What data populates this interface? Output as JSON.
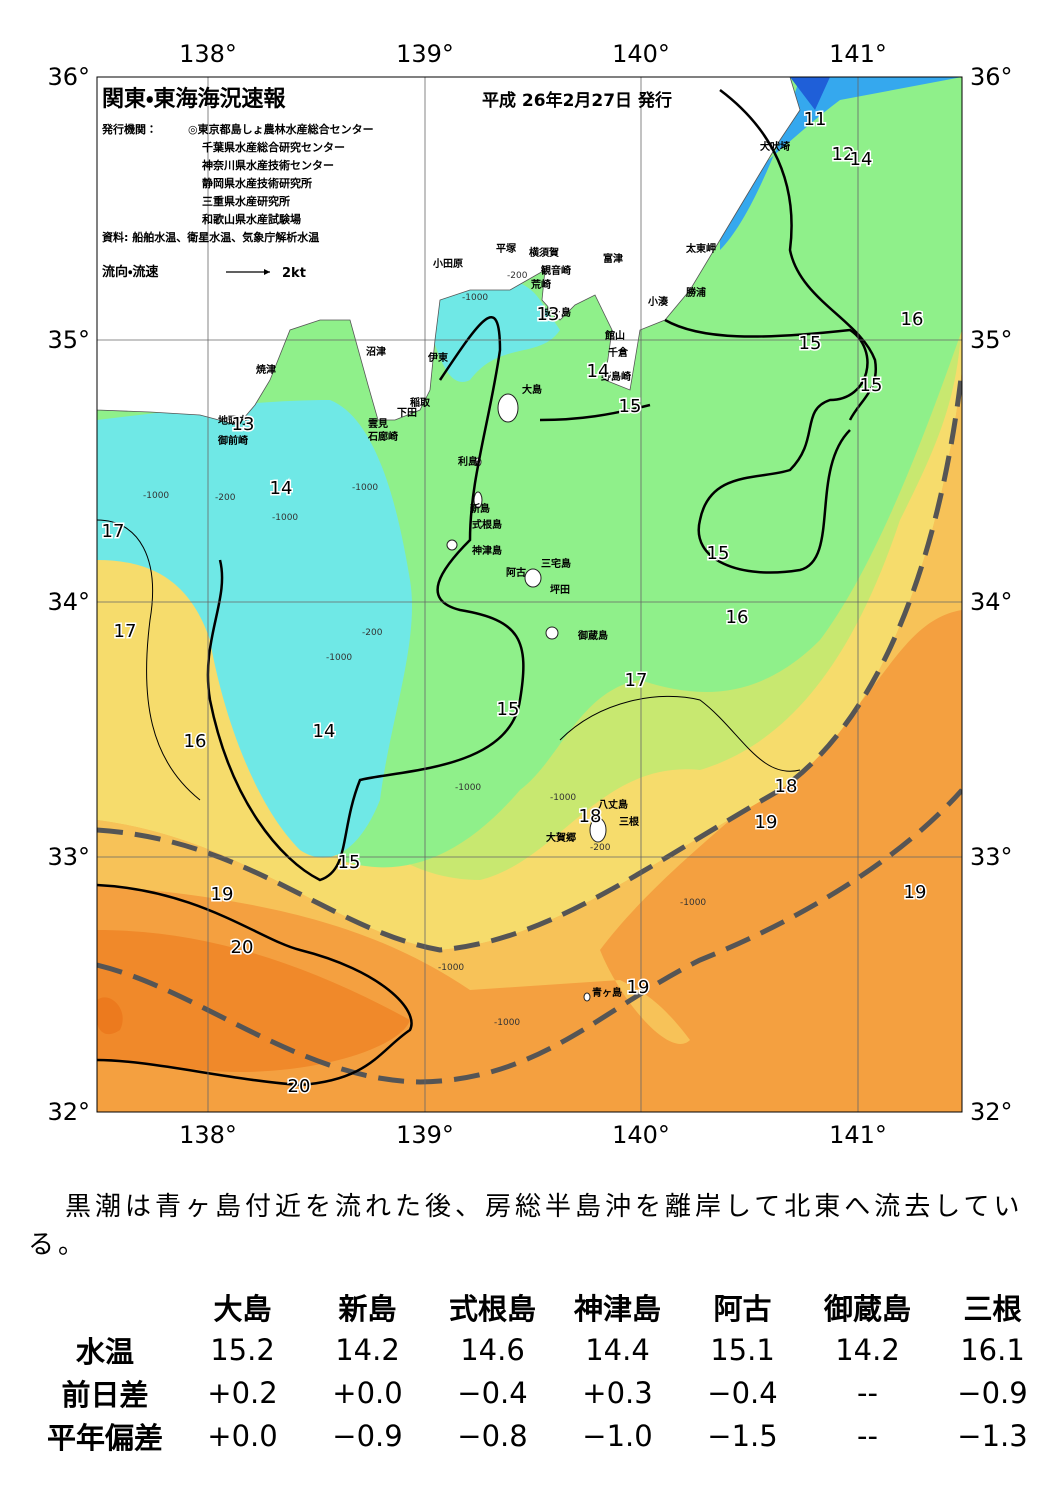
{
  "map": {
    "title": "関東・東海海況速報",
    "issued": "平成 26年2月27日 発行",
    "publisher_label": "発行機関：",
    "publishers": [
      "◎東京都島しょ農林水産総合センター",
      "千葉県水産総合研究センター",
      "神奈川県水産技術センター",
      "静岡県水産技術研究所",
      "三重県水産研究所",
      "和歌山県水産試験場"
    ],
    "source": "資料: 船舶水温、衛星水温、気象庁解析水温",
    "legend_label": "流向・流速",
    "legend_scale": "2kt",
    "lon_labels": [
      "138°",
      "139°",
      "140°",
      "141°"
    ],
    "lat_labels": [
      "36°",
      "35°",
      "34°",
      "33°",
      "32°"
    ],
    "places": [
      "犬吠埼",
      "太東岬",
      "勝浦",
      "小湊",
      "富津",
      "観音崎",
      "横須賀",
      "平塚",
      "小田原",
      "荒崎",
      "城ヶ島",
      "館山",
      "千倉",
      "野島崎",
      "沼津",
      "伊東",
      "焼津",
      "稲取",
      "下田",
      "雲見",
      "石廊崎",
      "地頭方",
      "御前崎",
      "大島",
      "利島",
      "新島",
      "式根島",
      "神津島",
      "三宅島",
      "阿古",
      "坪田",
      "御蔵島",
      "八丈島",
      "三根",
      "大賀郷",
      "青ヶ島"
    ],
    "isotherm_labels": [
      "11",
      "12",
      "14",
      "16",
      "15",
      "15",
      "14",
      "15",
      "13",
      "14",
      "17",
      "17",
      "16",
      "14",
      "15",
      "15",
      "16",
      "17",
      "18",
      "19",
      "18",
      "15",
      "19",
      "20",
      "19",
      "19",
      "20",
      "13"
    ],
    "depth_labels": [
      "-200",
      "-1000",
      "-1000",
      "-200",
      "-1000",
      "-1000",
      "-200",
      "-1000",
      "-1000",
      "-1000",
      "-1000",
      "-1000",
      "-1000",
      "-200"
    ]
  },
  "summary": "黒潮は青ヶ島付近を流れた後、房総半島沖を離岸して北東へ流去している。",
  "table": {
    "columns": [
      "大島",
      "新島",
      "式根島",
      "神津島",
      "阿古",
      "御蔵島",
      "三根"
    ],
    "rows": [
      {
        "label": "水温",
        "cells": [
          "15.2",
          "14.2",
          "14.6",
          "14.4",
          "15.1",
          "14.2",
          "16.1"
        ]
      },
      {
        "label": "前日差",
        "cells": [
          "+0.2",
          "+0.0",
          "−0.4",
          "+0.3",
          "−0.4",
          "--",
          "−0.9"
        ]
      },
      {
        "label": "平年偏差",
        "cells": [
          "+0.0",
          "−0.9",
          "−0.8",
          "−1.0",
          "−1.5",
          "--",
          "−1.3"
        ]
      }
    ]
  }
}
